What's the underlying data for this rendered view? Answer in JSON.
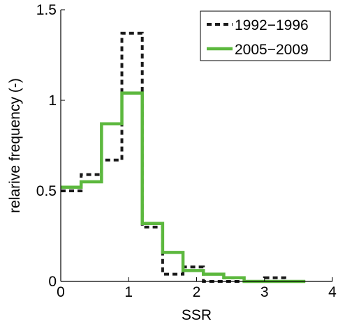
{
  "chart_data": {
    "type": "line",
    "subtype": "step-histogram",
    "xlabel": "SSR",
    "ylabel": "relarive frequency (-)",
    "xlim": [
      0,
      4
    ],
    "ylim": [
      0,
      1.5
    ],
    "x_ticks": [
      "0",
      "1",
      "2",
      "3",
      "4"
    ],
    "y_ticks": [
      "0",
      "0.5",
      "1",
      "1.5"
    ],
    "grid": false,
    "legend_position": "top-right",
    "bin_edges": [
      0,
      0.3,
      0.6,
      0.9,
      1.2,
      1.5,
      1.8,
      2.1,
      2.4,
      2.7,
      3.0,
      3.3,
      3.6
    ],
    "series": [
      {
        "name": "1992−1996",
        "style": "dashed",
        "color": "#1a1a1a",
        "values": [
          0.5,
          0.59,
          0.67,
          1.37,
          0.3,
          0.04,
          0.08,
          0.0,
          0.0,
          0.0,
          0.02,
          0.0
        ]
      },
      {
        "name": "2005−2009",
        "style": "solid",
        "color": "#5cb83e",
        "values": [
          0.52,
          0.55,
          0.87,
          1.04,
          0.32,
          0.16,
          0.06,
          0.04,
          0.02,
          0.0,
          0.0,
          0.0
        ]
      }
    ]
  }
}
